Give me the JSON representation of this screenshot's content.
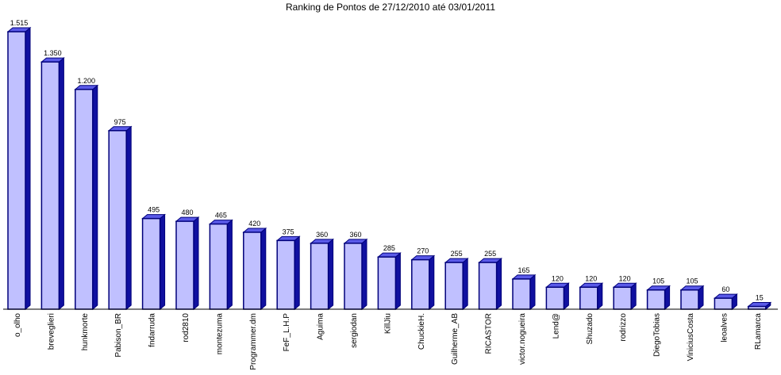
{
  "chart_data": {
    "type": "bar",
    "title": "Ranking de Pontos de 27/12/2010 até 03/01/2011",
    "xlabel": "",
    "ylabel": "",
    "ylim": [
      0,
      1575
    ],
    "grid": false,
    "legend": "none",
    "categories": [
      "o_olho",
      "breveglieri",
      "hunkmorte",
      "Pabison_BR",
      "fndarruda",
      "rod2810",
      "montezuma",
      "Programmer.dm",
      "FeF_L.H.P",
      "Aguima",
      "sergiodan",
      "KillJiu",
      "ChuckieH.",
      "Guilherme_AB",
      "RICASTOR",
      "victor.nogueira",
      "Lend@",
      "Shuzado",
      "rodrizzo",
      "DiegoTobias",
      "ViniciusCosta",
      "leoalves",
      "RLamarca"
    ],
    "values": [
      1515,
      1350,
      1200,
      975,
      495,
      480,
      465,
      420,
      375,
      360,
      360,
      285,
      270,
      255,
      255,
      165,
      120,
      120,
      120,
      105,
      105,
      60,
      15
    ],
    "value_labels": [
      "1.515",
      "1.350",
      "1.200",
      "975",
      "495",
      "480",
      "465",
      "420",
      "375",
      "360",
      "360",
      "285",
      "270",
      "255",
      "255",
      "165",
      "120",
      "120",
      "120",
      "105",
      "105",
      "60",
      "15"
    ],
    "colors": {
      "bar_front": "#c0c0ff",
      "bar_top": "#5a5ae8",
      "bar_side": "#1010a0",
      "outline": "#00007a",
      "axis": "#000000"
    }
  }
}
